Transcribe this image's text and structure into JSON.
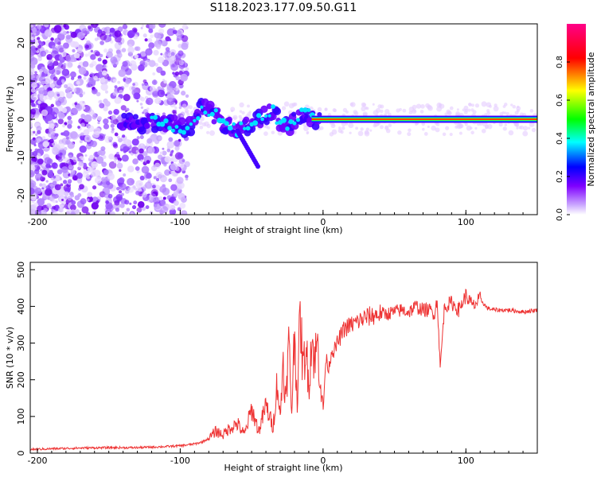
{
  "title": "S118.2023.177.09.50.G11",
  "chart_data": [
    {
      "type": "heatmap",
      "xlabel": "Height of straight line (km)",
      "ylabel": "Frequency (Hz)",
      "xlim": [
        -205,
        150
      ],
      "ylim": [
        -25,
        25
      ],
      "xticks": [
        -200,
        -100,
        0,
        100
      ],
      "xtick_labels": [
        "-200",
        "-100",
        "0",
        "100"
      ],
      "yticks": [
        -20,
        -10,
        0,
        10,
        20
      ],
      "ytick_labels": [
        "-20",
        "-10",
        "0",
        "10",
        "20"
      ],
      "grid": false,
      "colorbar": {
        "label": "Normalized spectral amplitude",
        "range": [
          0,
          1
        ],
        "ticks": [
          0.0,
          0.2,
          0.4,
          0.6,
          0.8
        ],
        "tick_labels": [
          "0.0",
          "0.2",
          "0.4",
          "0.6",
          "0.8"
        ],
        "colormap": [
          "#ffffff",
          "#7f00ff",
          "#0000ff",
          "#00ffff",
          "#00ff00",
          "#ffff00",
          "#ff0000",
          "#ff00aa"
        ]
      },
      "peak_track": {
        "x": [
          -140,
          -130,
          -120,
          -110,
          -100,
          -95,
          -90,
          -85,
          -80,
          -75,
          -70,
          -65,
          -60,
          -55,
          -50,
          -45,
          -40,
          -35,
          -30,
          -25,
          -20,
          -15,
          -10,
          -5,
          0,
          20,
          50,
          80,
          100,
          110,
          150
        ],
        "y": [
          -1,
          -1,
          -1,
          -1,
          -2,
          -2,
          -1,
          3,
          2,
          1,
          -1,
          -2,
          -3,
          -2,
          -1,
          0,
          1,
          2,
          -1,
          -2,
          0,
          1,
          1,
          0,
          0,
          0,
          0,
          0,
          0,
          -1,
          0
        ]
      }
    },
    {
      "type": "line",
      "xlabel": "Height of straight line (km)",
      "ylabel": "SNR (10 * v/v)",
      "xlim": [
        -205,
        150
      ],
      "ylim": [
        0,
        520
      ],
      "xticks": [
        -200,
        -100,
        0,
        100
      ],
      "xtick_labels": [
        "-200",
        "-100",
        "0",
        "100"
      ],
      "yticks": [
        0,
        100,
        200,
        300,
        400,
        500
      ],
      "ytick_labels": [
        "0",
        "100",
        "200",
        "300",
        "400",
        "500"
      ],
      "grid": false,
      "series": [
        {
          "color": "#ee3333",
          "x": [
            -205,
            -190,
            -170,
            -150,
            -130,
            -110,
            -100,
            -90,
            -85,
            -80,
            -75,
            -70,
            -65,
            -60,
            -55,
            -50,
            -45,
            -40,
            -35,
            -32,
            -30,
            -28,
            -26,
            -24,
            -22,
            -20,
            -18,
            -16,
            -14,
            -12,
            -10,
            -8,
            -6,
            -4,
            -2,
            0,
            2,
            4,
            6,
            8,
            10,
            15,
            20,
            25,
            30,
            35,
            40,
            45,
            50,
            55,
            60,
            65,
            70,
            75,
            78,
            80,
            82,
            85,
            90,
            95,
            100,
            105,
            110,
            115,
            120,
            130,
            140,
            150
          ],
          "y": [
            10,
            12,
            14,
            15,
            15,
            18,
            20,
            25,
            30,
            40,
            60,
            50,
            70,
            80,
            50,
            120,
            60,
            130,
            70,
            200,
            90,
            260,
            130,
            310,
            110,
            330,
            140,
            380,
            220,
            300,
            180,
            320,
            250,
            300,
            210,
            110,
            260,
            230,
            280,
            280,
            300,
            340,
            350,
            360,
            370,
            375,
            380,
            380,
            385,
            390,
            385,
            400,
            390,
            390,
            380,
            420,
            230,
            400,
            410,
            390,
            430,
            400,
            420,
            395,
            390,
            390,
            385,
            390
          ]
        }
      ]
    }
  ]
}
